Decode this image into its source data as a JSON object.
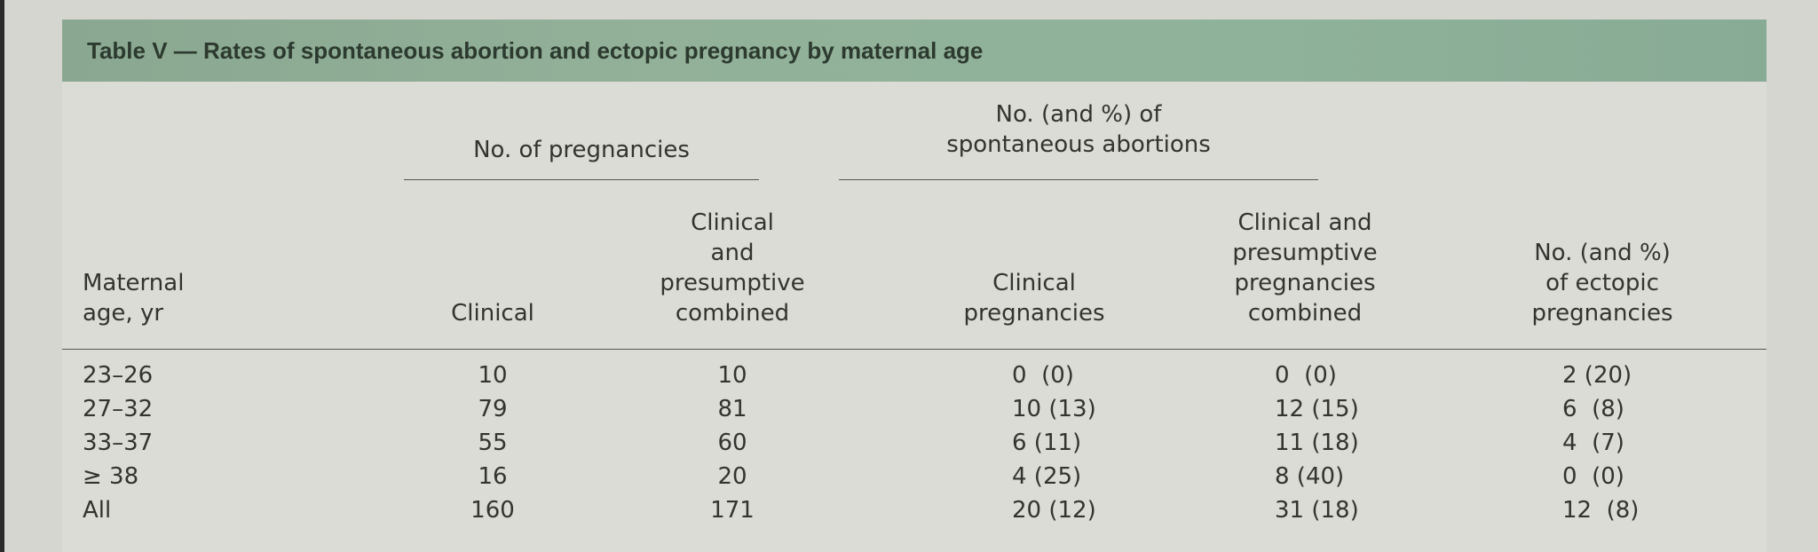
{
  "table": {
    "title": "Table V — Rates of spontaneous abortion and ectopic pregnancy by maternal age",
    "group_headers": {
      "pregnancies": "No. of pregnancies",
      "abortions": "No. (and %) of\nspontaneous abortions"
    },
    "columns": {
      "age": "Maternal\nage, yr",
      "clinical": "Clinical",
      "combined": "Clinical\nand\npresumptive\ncombined",
      "ab_clinical": "Clinical\npregnancies",
      "ab_combined": "Clinical and\npresumptive\npregnancies\ncombined",
      "ectopic": "No. (and %)\nof ectopic\npregnancies"
    },
    "rows": [
      {
        "age": "23–26",
        "clinical": "10",
        "combined": "10",
        "ab_clinical": "0  (0)",
        "ab_combined": "0  (0)",
        "ectopic": "2 (20)"
      },
      {
        "age": "27–32",
        "clinical": "79",
        "combined": "81",
        "ab_clinical": "10 (13)",
        "ab_combined": "12 (15)",
        "ectopic": "6  (8)"
      },
      {
        "age": "33–37",
        "clinical": "55",
        "combined": "60",
        "ab_clinical": "6 (11)",
        "ab_combined": "11 (18)",
        "ectopic": "4  (7)"
      },
      {
        "age": "≥ 38",
        "clinical": "16",
        "combined": "20",
        "ab_clinical": "4 (25)",
        "ab_combined": "8 (40)",
        "ectopic": "0  (0)"
      },
      {
        "age": "All",
        "clinical": "160",
        "combined": "171",
        "ab_clinical": "20 (12)",
        "ab_combined": "31 (18)",
        "ectopic": "12  (8)"
      }
    ]
  }
}
